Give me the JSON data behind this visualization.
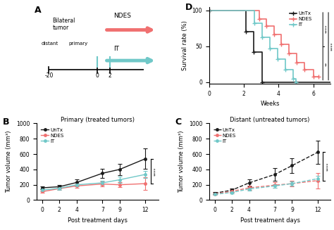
{
  "colors": {
    "untx": "#1a1a1a",
    "ndes": "#f07070",
    "it": "#70c8c8"
  },
  "panel_B": {
    "title": "Primary (treated tumors)",
    "xlabel": "Post treatment days",
    "ylabel": "Tumor volume (mm³)",
    "days": [
      0,
      2,
      4,
      7,
      9,
      12
    ],
    "untx_mean": [
      160,
      175,
      230,
      350,
      400,
      540
    ],
    "untx_err": [
      20,
      25,
      40,
      60,
      70,
      130
    ],
    "ndes_mean": [
      110,
      150,
      185,
      210,
      200,
      215
    ],
    "ndes_err": [
      15,
      20,
      25,
      35,
      30,
      80
    ],
    "it_mean": [
      130,
      155,
      200,
      225,
      265,
      335
    ],
    "it_err": [
      20,
      20,
      25,
      30,
      40,
      50
    ],
    "ylim": [
      0,
      1000
    ],
    "yticks": [
      0,
      200,
      400,
      600,
      800,
      1000
    ]
  },
  "panel_C": {
    "title": "Distant (untreated tumors)",
    "xlabel": "Post treatment days",
    "ylabel": "Tumor volume (mm³)",
    "days": [
      0,
      2,
      4,
      7,
      9,
      12
    ],
    "untx_mean": [
      90,
      130,
      225,
      335,
      450,
      625
    ],
    "untx_err": [
      15,
      25,
      50,
      80,
      100,
      150
    ],
    "ndes_mean": [
      80,
      115,
      160,
      195,
      215,
      255
    ],
    "ndes_err": [
      15,
      25,
      30,
      35,
      35,
      100
    ],
    "it_mean": [
      75,
      100,
      145,
      185,
      215,
      280
    ],
    "it_err": [
      10,
      15,
      20,
      25,
      30,
      40
    ],
    "ylim": [
      0,
      1000
    ],
    "yticks": [
      0,
      200,
      400,
      600,
      800,
      1000
    ]
  },
  "panel_D": {
    "xlabel": "Weeks",
    "ylabel": "Survival rate (%)",
    "xlim": [
      0,
      7
    ],
    "ylim": [
      -2,
      105
    ],
    "yticks": [
      0,
      50,
      100
    ],
    "xticks": [
      0,
      2,
      4,
      6
    ],
    "untx_x": [
      0,
      2.1,
      2.1,
      2.55,
      2.55,
      3.05,
      3.05,
      7
    ],
    "untx_y": [
      100,
      100,
      70,
      70,
      42,
      42,
      0,
      0
    ],
    "ndes_x": [
      0,
      2.9,
      2.9,
      3.3,
      3.3,
      3.75,
      3.75,
      4.15,
      4.15,
      4.6,
      4.6,
      5.05,
      5.05,
      5.5,
      5.5,
      6.0,
      6.0,
      6.3,
      6.3
    ],
    "ndes_y": [
      100,
      100,
      88,
      88,
      78,
      78,
      67,
      67,
      53,
      53,
      40,
      40,
      27,
      27,
      17,
      17,
      8,
      8,
      8
    ],
    "it_x": [
      0,
      2.6,
      2.6,
      3.05,
      3.05,
      3.5,
      3.5,
      3.95,
      3.95,
      4.4,
      4.4,
      4.85,
      4.85,
      5.0,
      5.0
    ],
    "it_y": [
      100,
      100,
      82,
      82,
      63,
      63,
      47,
      47,
      32,
      32,
      17,
      17,
      5,
      5,
      0
    ]
  }
}
